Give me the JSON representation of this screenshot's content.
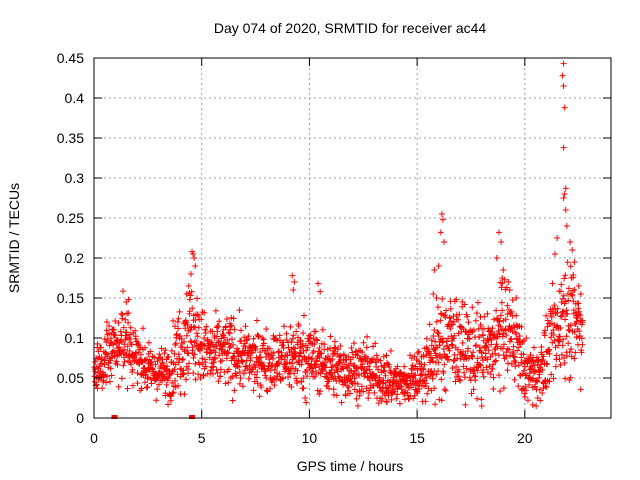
{
  "chart_data": {
    "type": "scatter",
    "title": "Day 074 of 2020, SRMTID for receiver ac44",
    "xlabel": "GPS time / hours",
    "ylabel": "SRMTID / TECUs",
    "xlim": [
      0,
      24
    ],
    "ylim": [
      0,
      0.45
    ],
    "xticks": [
      0,
      5,
      10,
      15,
      20
    ],
    "xtick_labels": [
      "0",
      "5",
      "10",
      "15",
      "20"
    ],
    "yticks": [
      0,
      0.05,
      0.1,
      0.15,
      0.2,
      0.25,
      0.3,
      0.35,
      0.4,
      0.45
    ],
    "ytick_labels": [
      "0",
      "0.05",
      "0.1",
      "0.15",
      "0.2",
      "0.25",
      "0.3",
      "0.35",
      "0.4",
      "0.45"
    ],
    "grid": true,
    "marker": "+",
    "color": "#ff0000",
    "trend": {
      "x": [
        0,
        0.5,
        1,
        1.5,
        2,
        2.5,
        3,
        3.5,
        4,
        4.5,
        5,
        5.5,
        6,
        6.5,
        7,
        7.5,
        8,
        8.5,
        9,
        9.5,
        10,
        10.5,
        11,
        11.5,
        12,
        12.5,
        13,
        13.5,
        14,
        14.5,
        15,
        15.5,
        16,
        16.5,
        17,
        17.5,
        18,
        18.5,
        19,
        19.5,
        20,
        20.5,
        21,
        21.5,
        22,
        22.5
      ],
      "y": [
        0.06,
        0.075,
        0.085,
        0.09,
        0.08,
        0.06,
        0.055,
        0.06,
        0.09,
        0.11,
        0.09,
        0.075,
        0.085,
        0.08,
        0.075,
        0.07,
        0.075,
        0.07,
        0.075,
        0.08,
        0.075,
        0.07,
        0.065,
        0.06,
        0.06,
        0.06,
        0.055,
        0.05,
        0.045,
        0.045,
        0.05,
        0.065,
        0.08,
        0.1,
        0.09,
        0.085,
        0.08,
        0.085,
        0.11,
        0.1,
        0.06,
        0.055,
        0.075,
        0.11,
        0.14,
        0.11
      ],
      "spread": [
        0.015,
        0.02,
        0.025,
        0.03,
        0.02,
        0.015,
        0.015,
        0.02,
        0.03,
        0.035,
        0.025,
        0.025,
        0.025,
        0.025,
        0.02,
        0.02,
        0.02,
        0.02,
        0.025,
        0.025,
        0.025,
        0.02,
        0.02,
        0.02,
        0.02,
        0.02,
        0.02,
        0.018,
        0.015,
        0.015,
        0.018,
        0.025,
        0.03,
        0.035,
        0.03,
        0.03,
        0.03,
        0.03,
        0.035,
        0.03,
        0.02,
        0.02,
        0.025,
        0.035,
        0.045,
        0.03
      ]
    },
    "points": [
      [
        4.55,
        0.208
      ],
      [
        4.6,
        0.205
      ],
      [
        4.65,
        0.2
      ],
      [
        4.7,
        0.19
      ],
      [
        4.5,
        0.18
      ],
      [
        4.4,
        0.165
      ],
      [
        4.3,
        0.155
      ],
      [
        1.6,
        0.148
      ],
      [
        1.5,
        0.145
      ],
      [
        0.6,
        0.12
      ],
      [
        0.7,
        0.115
      ],
      [
        9.2,
        0.178
      ],
      [
        9.3,
        0.17
      ],
      [
        9.25,
        0.16
      ],
      [
        10.4,
        0.168
      ],
      [
        10.5,
        0.158
      ],
      [
        16.15,
        0.255
      ],
      [
        16.2,
        0.248
      ],
      [
        16.1,
        0.232
      ],
      [
        16.25,
        0.22
      ],
      [
        16.0,
        0.19
      ],
      [
        15.8,
        0.185
      ],
      [
        15.75,
        0.155
      ],
      [
        15.9,
        0.15
      ],
      [
        18.8,
        0.232
      ],
      [
        18.9,
        0.22
      ],
      [
        18.7,
        0.2
      ],
      [
        19.0,
        0.185
      ],
      [
        18.95,
        0.175
      ],
      [
        19.3,
        0.16
      ],
      [
        19.6,
        0.15
      ],
      [
        21.8,
        0.443
      ],
      [
        21.75,
        0.428
      ],
      [
        21.8,
        0.415
      ],
      [
        21.85,
        0.388
      ],
      [
        21.8,
        0.338
      ],
      [
        21.9,
        0.287
      ],
      [
        21.85,
        0.28
      ],
      [
        21.8,
        0.275
      ],
      [
        21.9,
        0.26
      ],
      [
        21.95,
        0.24
      ],
      [
        22.1,
        0.22
      ],
      [
        22.2,
        0.21
      ],
      [
        21.5,
        0.225
      ],
      [
        21.4,
        0.205
      ],
      [
        22.3,
        0.195
      ],
      [
        22.5,
        0.165
      ],
      [
        22.6,
        0.155
      ],
      [
        18.0,
        0.015
      ],
      [
        20.6,
        0.025
      ],
      [
        14.2,
        0.018
      ],
      [
        13.6,
        0.02
      ]
    ],
    "bottom_markers_x": [
      0.95,
      4.55
    ]
  }
}
